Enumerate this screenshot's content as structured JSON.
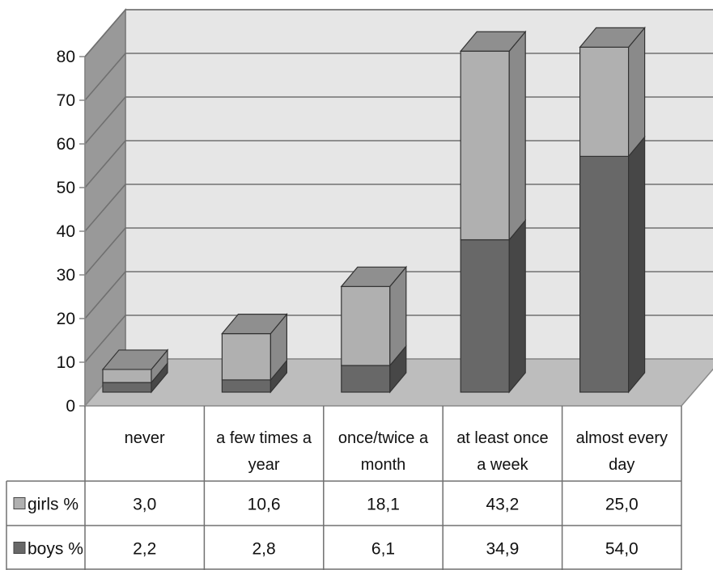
{
  "chart_data": {
    "type": "bar",
    "stacked": true,
    "three_d": true,
    "categories": [
      "never",
      "a few times a year",
      "once/twice a month",
      "at least once a week",
      "almost every day"
    ],
    "category_label_lines": [
      [
        "never"
      ],
      [
        "a few times a",
        "year"
      ],
      [
        "once/twice a",
        "month"
      ],
      [
        "at least once",
        "a week"
      ],
      [
        "almost every",
        "day"
      ]
    ],
    "series": [
      {
        "name": "girls %",
        "values": [
          3.0,
          10.6,
          18.1,
          43.2,
          25.0
        ],
        "labels": [
          "3,0",
          "10,6",
          "18,1",
          "43,2",
          "25,0"
        ],
        "color": "#b0b0b0"
      },
      {
        "name": "boys %",
        "values": [
          2.2,
          2.8,
          6.1,
          34.9,
          54.0
        ],
        "labels": [
          "2,2",
          "2,8",
          "6,1",
          "34,9",
          "54,0"
        ],
        "color": "#686868"
      }
    ],
    "stack_order": [
      "boys %",
      "girls %"
    ],
    "ylim": [
      0,
      80
    ],
    "yticks": [
      0,
      10,
      20,
      30,
      40,
      50,
      60,
      70,
      80
    ],
    "grid": true,
    "legend": "data table",
    "title": "",
    "xlabel": "",
    "ylabel": ""
  }
}
